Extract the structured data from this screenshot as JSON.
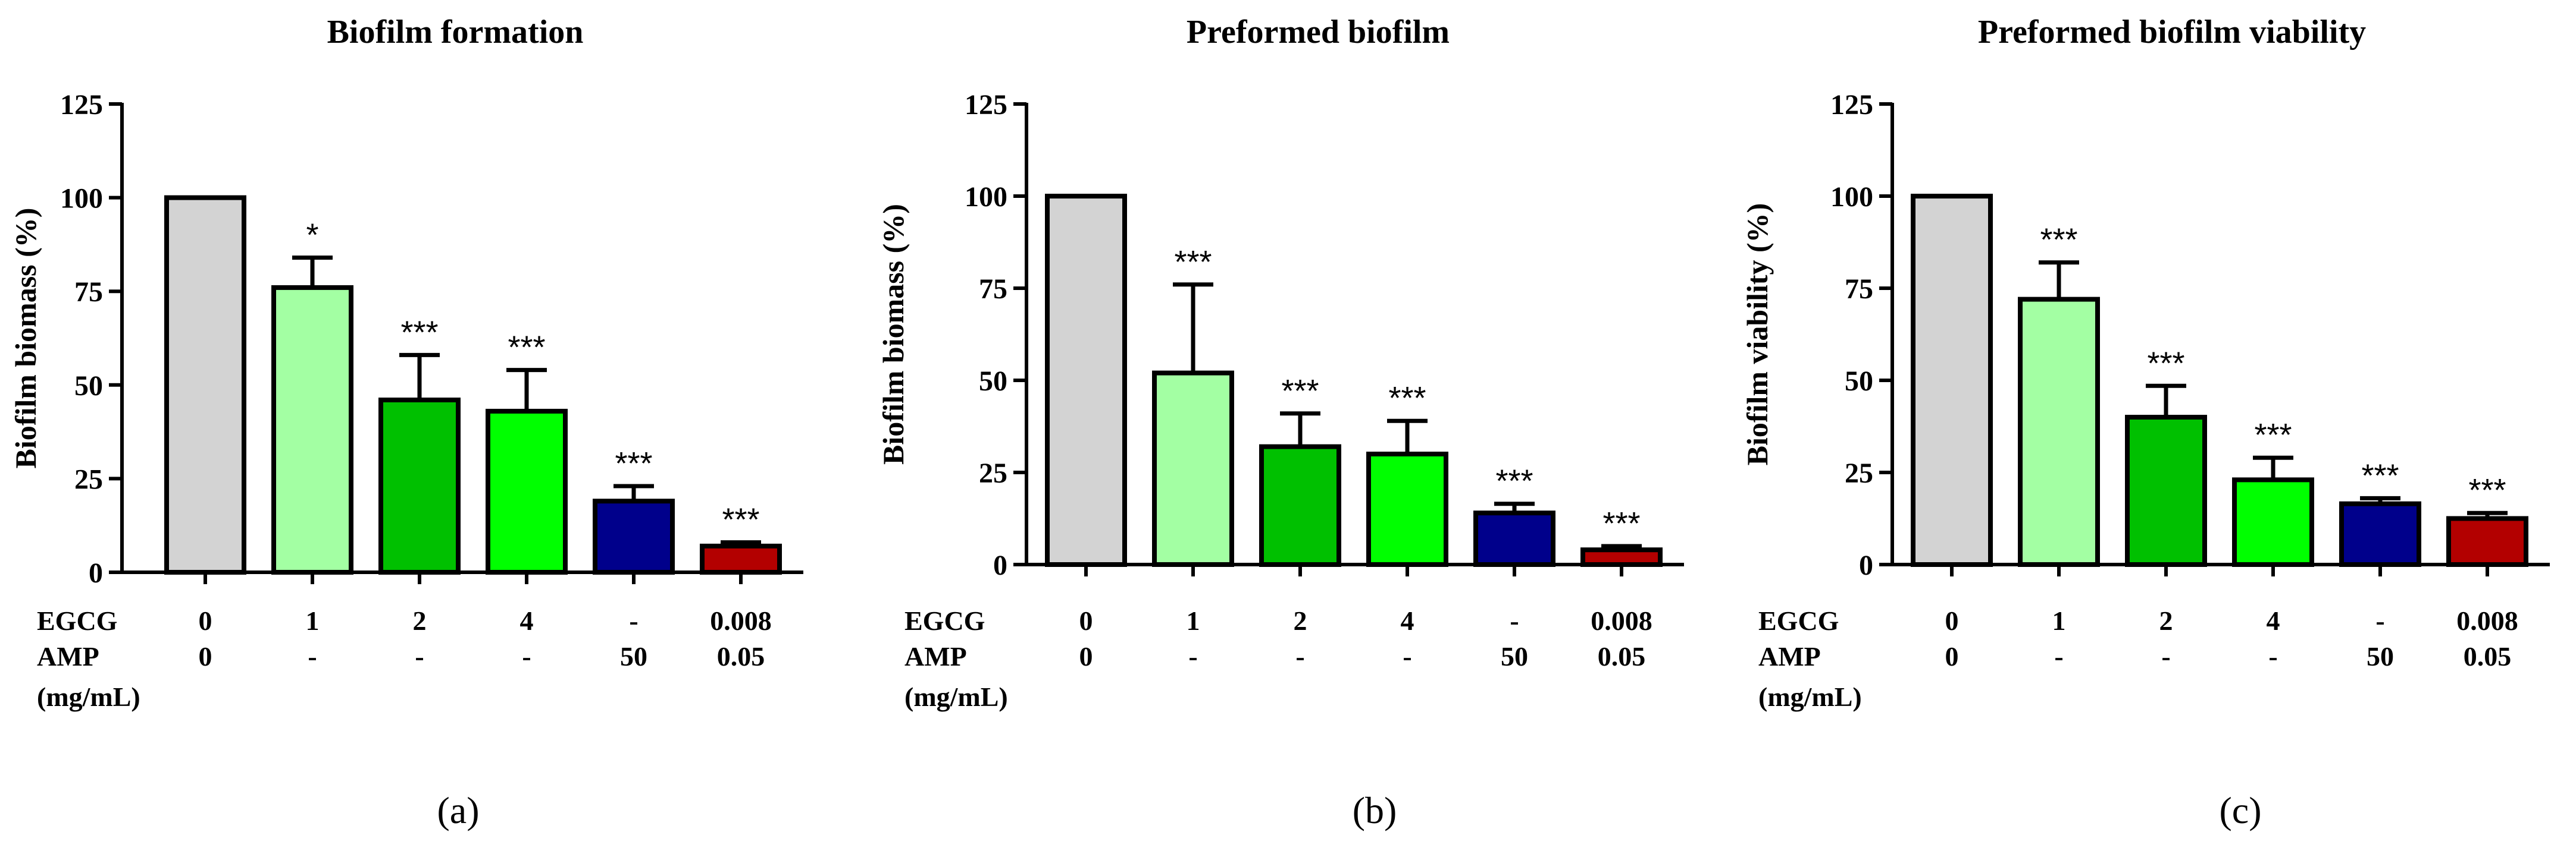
{
  "figure": {
    "row_labels": {
      "egcg": "EGCG",
      "amp": "AMP",
      "units": "(mg/mL)"
    }
  },
  "chart_data": [
    {
      "type": "bar",
      "panel_label": "(a)",
      "title": "Biofilm formation",
      "ylabel": "Biofilm biomass (%)",
      "xlabel": "",
      "ylim": [
        0,
        125
      ],
      "yticks": [
        "0",
        "25",
        "50",
        "75",
        "100",
        "125"
      ],
      "categories": [
        "EGCG 0 / AMP 0",
        "EGCG 1",
        "EGCG 2",
        "EGCG 4",
        "AMP 50",
        "EGCG 0.008 + AMP 0.05"
      ],
      "egcg": [
        "0",
        "1",
        "2",
        "4",
        "-",
        "0.008"
      ],
      "amp": [
        "0",
        "-",
        "-",
        "-",
        "50",
        "0.05"
      ],
      "values": [
        100,
        76,
        46,
        43,
        19,
        7
      ],
      "errors": [
        0,
        8,
        12,
        11,
        4,
        1
      ],
      "significance": [
        "",
        "*",
        "***",
        "***",
        "***",
        "***"
      ],
      "colors": [
        "#d3d3d3",
        "#a3ffa3",
        "#00c000",
        "#00ff00",
        "#00008b",
        "#b30000"
      ]
    },
    {
      "type": "bar",
      "panel_label": "(b)",
      "title": "Preformed biofilm",
      "ylabel": "Biofilm biomass (%)",
      "xlabel": "",
      "ylim": [
        0,
        125
      ],
      "yticks": [
        "0",
        "25",
        "50",
        "75",
        "100",
        "125"
      ],
      "categories": [
        "EGCG 0 / AMP 0",
        "EGCG 1",
        "EGCG 2",
        "EGCG 4",
        "AMP 50",
        "EGCG 0.008 + AMP 0.05"
      ],
      "egcg": [
        "0",
        "1",
        "2",
        "4",
        "-",
        "0.008"
      ],
      "amp": [
        "0",
        "-",
        "-",
        "-",
        "50",
        "0.05"
      ],
      "values": [
        100,
        52,
        32,
        30,
        14,
        4
      ],
      "errors": [
        0,
        24,
        9,
        9,
        2.5,
        1
      ],
      "significance": [
        "",
        "***",
        "***",
        "***",
        "***",
        "***"
      ],
      "colors": [
        "#d3d3d3",
        "#a3ffa3",
        "#00c000",
        "#00ff00",
        "#00008b",
        "#b30000"
      ]
    },
    {
      "type": "bar",
      "panel_label": "(c)",
      "title": "Preformed biofilm viability",
      "ylabel": "Biofilm viability (%)",
      "xlabel": "",
      "ylim": [
        0,
        125
      ],
      "yticks": [
        "0",
        "25",
        "50",
        "75",
        "100",
        "125"
      ],
      "categories": [
        "EGCG 0 / AMP 0",
        "EGCG 1",
        "EGCG 2",
        "EGCG 4",
        "AMP 50",
        "EGCG 0.008 + AMP 0.05"
      ],
      "egcg": [
        "0",
        "1",
        "2",
        "4",
        "-",
        "0.008"
      ],
      "amp": [
        "0",
        "-",
        "-",
        "-",
        "50",
        "0.05"
      ],
      "values": [
        100,
        72,
        40,
        23,
        16.5,
        12.5
      ],
      "errors": [
        0,
        10,
        8.5,
        6,
        1.5,
        1.5
      ],
      "significance": [
        "",
        "***",
        "***",
        "***",
        "***",
        "***"
      ],
      "colors": [
        "#d3d3d3",
        "#a3ffa3",
        "#00c000",
        "#00ff00",
        "#00008b",
        "#b30000"
      ]
    }
  ]
}
